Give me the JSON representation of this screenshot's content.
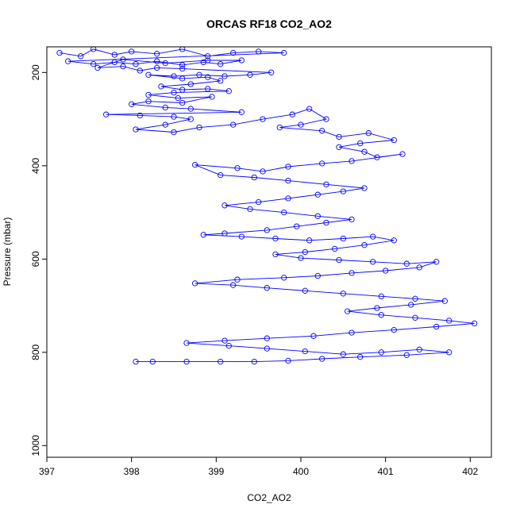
{
  "chart_data": {
    "type": "scatter",
    "title": "ORCAS RF18 CO2_AO2",
    "xlabel": "CO2_AO2",
    "ylabel": "Pressure (mbar)",
    "xlim": [
      397.0,
      402.25
    ],
    "ylim": [
      1025,
      145
    ],
    "y_reversed": true,
    "x_ticks": [
      397,
      398,
      399,
      400,
      401,
      402
    ],
    "y_ticks": [
      200,
      400,
      600,
      800,
      1000
    ],
    "grid": false,
    "legend": "none",
    "series": [
      {
        "style": "points-connected",
        "points": [
          [
            397.15,
            158
          ],
          [
            397.4,
            165
          ],
          [
            397.55,
            150
          ],
          [
            397.8,
            162
          ],
          [
            398.0,
            155
          ],
          [
            398.3,
            160
          ],
          [
            398.6,
            150
          ],
          [
            398.9,
            165
          ],
          [
            399.2,
            158
          ],
          [
            399.5,
            155
          ],
          [
            399.8,
            158
          ],
          [
            397.25,
            176
          ],
          [
            397.55,
            182
          ],
          [
            397.8,
            178
          ],
          [
            398.05,
            182
          ],
          [
            398.3,
            176
          ],
          [
            398.6,
            184
          ],
          [
            398.85,
            178
          ],
          [
            399.05,
            182
          ],
          [
            399.3,
            174
          ],
          [
            398.9,
            174
          ],
          [
            398.4,
            180
          ],
          [
            397.9,
            172
          ],
          [
            397.6,
            190
          ],
          [
            397.9,
            187
          ],
          [
            398.1,
            196
          ],
          [
            398.3,
            190
          ],
          [
            398.6,
            192
          ],
          [
            399.65,
            200
          ],
          [
            399.4,
            205
          ],
          [
            399.1,
            208
          ],
          [
            398.8,
            205
          ],
          [
            398.5,
            208
          ],
          [
            398.2,
            205
          ],
          [
            398.6,
            213
          ],
          [
            398.9,
            210
          ],
          [
            399.05,
            218
          ],
          [
            398.7,
            225
          ],
          [
            398.35,
            230
          ],
          [
            398.6,
            237
          ],
          [
            398.9,
            235
          ],
          [
            399.15,
            240
          ],
          [
            398.5,
            243
          ],
          [
            398.2,
            248
          ],
          [
            398.55,
            255
          ],
          [
            398.95,
            252
          ],
          [
            398.6,
            265
          ],
          [
            398.2,
            262
          ],
          [
            398.0,
            268
          ],
          [
            398.4,
            275
          ],
          [
            398.7,
            278
          ],
          [
            399.3,
            285
          ],
          [
            397.7,
            290
          ],
          [
            398.1,
            292
          ],
          [
            398.5,
            295
          ],
          [
            398.7,
            300
          ],
          [
            398.4,
            312
          ],
          [
            398.05,
            322
          ],
          [
            398.5,
            328
          ],
          [
            398.8,
            318
          ],
          [
            399.2,
            312
          ],
          [
            399.55,
            300
          ],
          [
            399.9,
            290
          ],
          [
            400.1,
            278
          ],
          [
            400.3,
            300
          ],
          [
            400.0,
            312
          ],
          [
            399.75,
            318
          ],
          [
            400.25,
            325
          ],
          [
            400.45,
            338
          ],
          [
            400.8,
            330
          ],
          [
            401.1,
            345
          ],
          [
            400.7,
            352
          ],
          [
            400.45,
            360
          ],
          [
            400.75,
            370
          ],
          [
            400.9,
            382
          ],
          [
            401.2,
            375
          ],
          [
            400.6,
            390
          ],
          [
            400.25,
            395
          ],
          [
            399.85,
            402
          ],
          [
            399.55,
            412
          ],
          [
            399.25,
            405
          ],
          [
            398.75,
            398
          ],
          [
            399.05,
            420
          ],
          [
            399.45,
            425
          ],
          [
            399.85,
            432
          ],
          [
            400.3,
            440
          ],
          [
            400.75,
            448
          ],
          [
            400.5,
            455
          ],
          [
            400.2,
            462
          ],
          [
            399.85,
            470
          ],
          [
            399.5,
            478
          ],
          [
            399.1,
            485
          ],
          [
            399.4,
            493
          ],
          [
            399.8,
            500
          ],
          [
            400.2,
            508
          ],
          [
            400.6,
            515
          ],
          [
            400.3,
            522
          ],
          [
            399.95,
            530
          ],
          [
            399.6,
            538
          ],
          [
            399.1,
            545
          ],
          [
            398.85,
            548
          ],
          [
            399.3,
            552
          ],
          [
            399.7,
            556
          ],
          [
            400.1,
            560
          ],
          [
            400.5,
            556
          ],
          [
            400.85,
            552
          ],
          [
            401.1,
            560
          ],
          [
            400.75,
            570
          ],
          [
            400.4,
            578
          ],
          [
            400.05,
            585
          ],
          [
            399.7,
            590
          ],
          [
            400.0,
            598
          ],
          [
            400.45,
            602
          ],
          [
            400.85,
            606
          ],
          [
            401.25,
            610
          ],
          [
            401.6,
            606
          ],
          [
            401.4,
            618
          ],
          [
            401.0,
            625
          ],
          [
            400.6,
            630
          ],
          [
            400.2,
            636
          ],
          [
            399.8,
            640
          ],
          [
            399.25,
            644
          ],
          [
            398.75,
            652
          ],
          [
            399.2,
            656
          ],
          [
            399.6,
            662
          ],
          [
            400.05,
            668
          ],
          [
            400.5,
            674
          ],
          [
            400.95,
            680
          ],
          [
            401.35,
            685
          ],
          [
            401.7,
            690
          ],
          [
            401.3,
            698
          ],
          [
            400.9,
            705
          ],
          [
            400.55,
            712
          ],
          [
            400.95,
            720
          ],
          [
            401.35,
            726
          ],
          [
            401.75,
            732
          ],
          [
            402.05,
            738
          ],
          [
            401.6,
            745
          ],
          [
            401.1,
            752
          ],
          [
            400.6,
            758
          ],
          [
            400.15,
            765
          ],
          [
            399.6,
            770
          ],
          [
            399.1,
            775
          ],
          [
            398.65,
            780
          ],
          [
            399.15,
            786
          ],
          [
            399.6,
            792
          ],
          [
            400.05,
            798
          ],
          [
            400.5,
            804
          ],
          [
            400.95,
            800
          ],
          [
            401.4,
            794
          ],
          [
            401.75,
            800
          ],
          [
            401.25,
            806
          ],
          [
            400.7,
            810
          ],
          [
            400.25,
            814
          ],
          [
            399.85,
            818
          ],
          [
            399.45,
            820
          ],
          [
            399.05,
            820
          ],
          [
            398.65,
            820
          ],
          [
            398.25,
            820
          ],
          [
            398.05,
            820
          ]
        ]
      }
    ]
  }
}
